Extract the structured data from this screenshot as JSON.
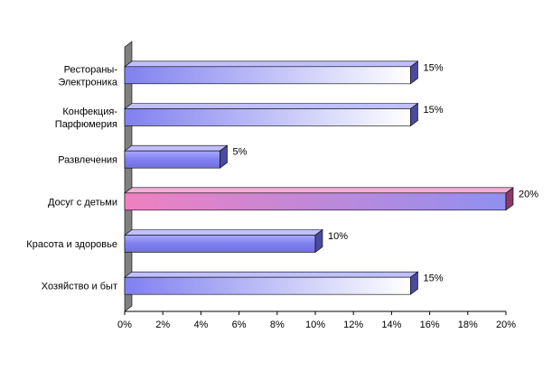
{
  "chart_data": {
    "type": "bar",
    "orientation": "horizontal",
    "style": "3d",
    "categories": [
      [
        "Рестораны-",
        "Электроника"
      ],
      [
        "Конфекция-",
        "Парфюмерия"
      ],
      [
        "Развлечения"
      ],
      [
        "Досуг с детьми"
      ],
      [
        "Красота и здоровье"
      ],
      [
        "Хозяйство и быт"
      ]
    ],
    "values": [
      15,
      15,
      5,
      20,
      10,
      15
    ],
    "data_labels": [
      "15%",
      "15%",
      "5%",
      "20%",
      "10%",
      "15%"
    ],
    "highlighted_index": 3,
    "xlim": [
      0,
      20
    ],
    "xticks": [
      0,
      2,
      4,
      6,
      8,
      10,
      12,
      14,
      16,
      18,
      20
    ],
    "xtick_labels": [
      "0%",
      "2%",
      "4%",
      "6%",
      "8%",
      "10%",
      "12%",
      "14%",
      "16%",
      "18%",
      "20%"
    ],
    "grid": false,
    "legend": "none",
    "title": "",
    "xlabel": "",
    "ylabel": "",
    "colors": {
      "bar_main": "#8080f0",
      "bar_light": "#ffffff",
      "bar_highlight": "#f080c0",
      "bar_top": "#c0c0ff",
      "bar_side": "#4a4aa0",
      "bar_highlight_side": "#8a3a6a",
      "wall": "#808080",
      "axis": "#000000"
    }
  }
}
